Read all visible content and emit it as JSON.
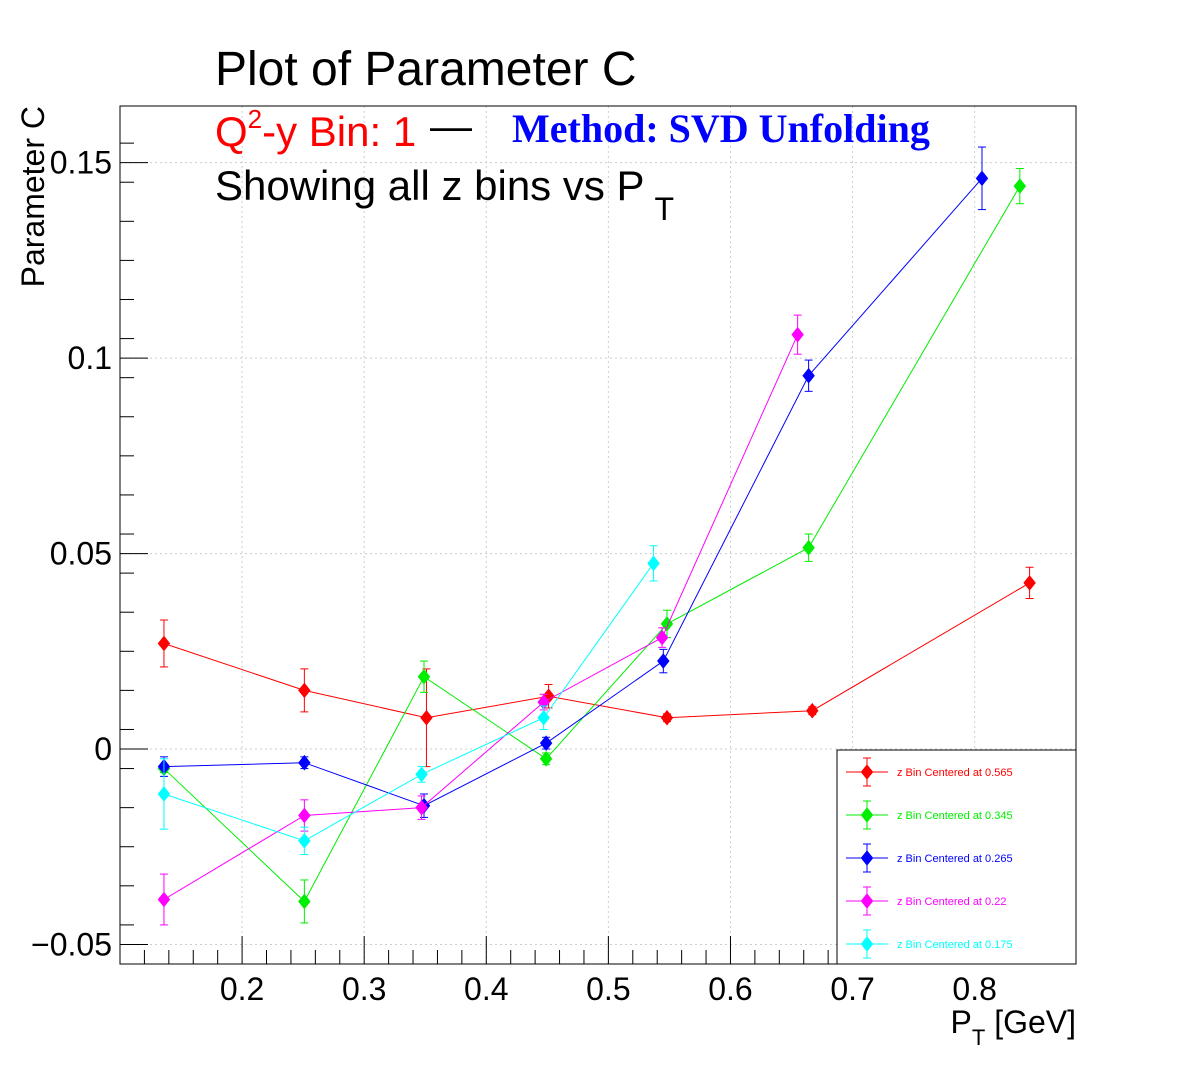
{
  "chart_data": {
    "type": "scatter",
    "title": "Plot of Parameter C",
    "subtitle": {
      "part1": "Q",
      "part1_sup": "2",
      "part1_rest": "-y Bin: 1",
      "dash": "—",
      "method": "Method: SVD Unfolding",
      "line3": "Showing all z bins vs P",
      "line3_sub": "T"
    },
    "xlabel": {
      "main": "P",
      "sub": "T",
      "rest": " [GeV]"
    },
    "ylabel": "Parameter C",
    "xlim": [
      0.1,
      0.883
    ],
    "ylim": [
      -0.055,
      0.1645
    ],
    "xticks": [
      {
        "v": 0.2,
        "label": "0.2"
      },
      {
        "v": 0.3,
        "label": "0.3"
      },
      {
        "v": 0.4,
        "label": "0.4"
      },
      {
        "v": 0.5,
        "label": "0.5"
      },
      {
        "v": 0.6,
        "label": "0.6"
      },
      {
        "v": 0.7,
        "label": "0.7"
      },
      {
        "v": 0.8,
        "label": "0.8"
      }
    ],
    "yticks": [
      {
        "v": -0.05,
        "label": "−0.05"
      },
      {
        "v": 0,
        "label": "0"
      },
      {
        "v": 0.05,
        "label": "0.05"
      },
      {
        "v": 0.1,
        "label": "0.1"
      },
      {
        "v": 0.15,
        "label": "0.15"
      }
    ],
    "grid": true,
    "legend_position": "bottom-right",
    "series": [
      {
        "name": "z Bin Centered at 0.565",
        "color": "#ff0000",
        "points": [
          {
            "x": 0.136,
            "y": 0.027,
            "err": 0.006
          },
          {
            "x": 0.251,
            "y": 0.015,
            "err": 0.0055
          },
          {
            "x": 0.351,
            "y": 0.008,
            "err": 0.0125
          },
          {
            "x": 0.451,
            "y": 0.0135,
            "err": 0.003
          },
          {
            "x": 0.548,
            "y": 0.008,
            "err": 0.001
          },
          {
            "x": 0.667,
            "y": 0.0098,
            "err": 0.001
          },
          {
            "x": 0.845,
            "y": 0.0425,
            "err": 0.004
          }
        ]
      },
      {
        "name": "z Bin Centered at 0.345",
        "color": "#00ee00",
        "points": [
          {
            "x": 0.136,
            "y": -0.005,
            "err": 0.001
          },
          {
            "x": 0.251,
            "y": -0.039,
            "err": 0.0055
          },
          {
            "x": 0.349,
            "y": 0.0185,
            "err": 0.004
          },
          {
            "x": 0.449,
            "y": -0.0025,
            "err": 0.0015
          },
          {
            "x": 0.548,
            "y": 0.032,
            "err": 0.0035
          },
          {
            "x": 0.664,
            "y": 0.0515,
            "err": 0.0035
          },
          {
            "x": 0.837,
            "y": 0.144,
            "err": 0.0045
          }
        ]
      },
      {
        "name": "z Bin Centered at 0.265",
        "color": "#0000ff",
        "points": [
          {
            "x": 0.136,
            "y": -0.0045,
            "err": 0.0025
          },
          {
            "x": 0.251,
            "y": -0.0035,
            "err": 0.0015
          },
          {
            "x": 0.349,
            "y": -0.0145,
            "err": 0.003
          },
          {
            "x": 0.449,
            "y": 0.0015,
            "err": 0.0015
          },
          {
            "x": 0.545,
            "y": 0.0225,
            "err": 0.003
          },
          {
            "x": 0.664,
            "y": 0.0955,
            "err": 0.004
          },
          {
            "x": 0.806,
            "y": 0.146,
            "err": 0.008
          }
        ]
      },
      {
        "name": "z Bin Centered at 0.22",
        "color": "#ff00ff",
        "points": [
          {
            "x": 0.136,
            "y": -0.0385,
            "err": 0.0065
          },
          {
            "x": 0.251,
            "y": -0.017,
            "err": 0.004
          },
          {
            "x": 0.347,
            "y": -0.015,
            "err": 0.003
          },
          {
            "x": 0.447,
            "y": 0.012,
            "err": 0.002
          },
          {
            "x": 0.544,
            "y": 0.0285,
            "err": 0.0025
          },
          {
            "x": 0.655,
            "y": 0.106,
            "err": 0.005
          }
        ]
      },
      {
        "name": "z Bin Centered at 0.175",
        "color": "#00ffff",
        "points": [
          {
            "x": 0.136,
            "y": -0.0115,
            "err": 0.009
          },
          {
            "x": 0.251,
            "y": -0.0235,
            "err": 0.0035
          },
          {
            "x": 0.347,
            "y": -0.0065,
            "err": 0.002
          },
          {
            "x": 0.447,
            "y": 0.008,
            "err": 0.003
          },
          {
            "x": 0.537,
            "y": 0.0475,
            "err": 0.0045
          }
        ]
      }
    ]
  }
}
